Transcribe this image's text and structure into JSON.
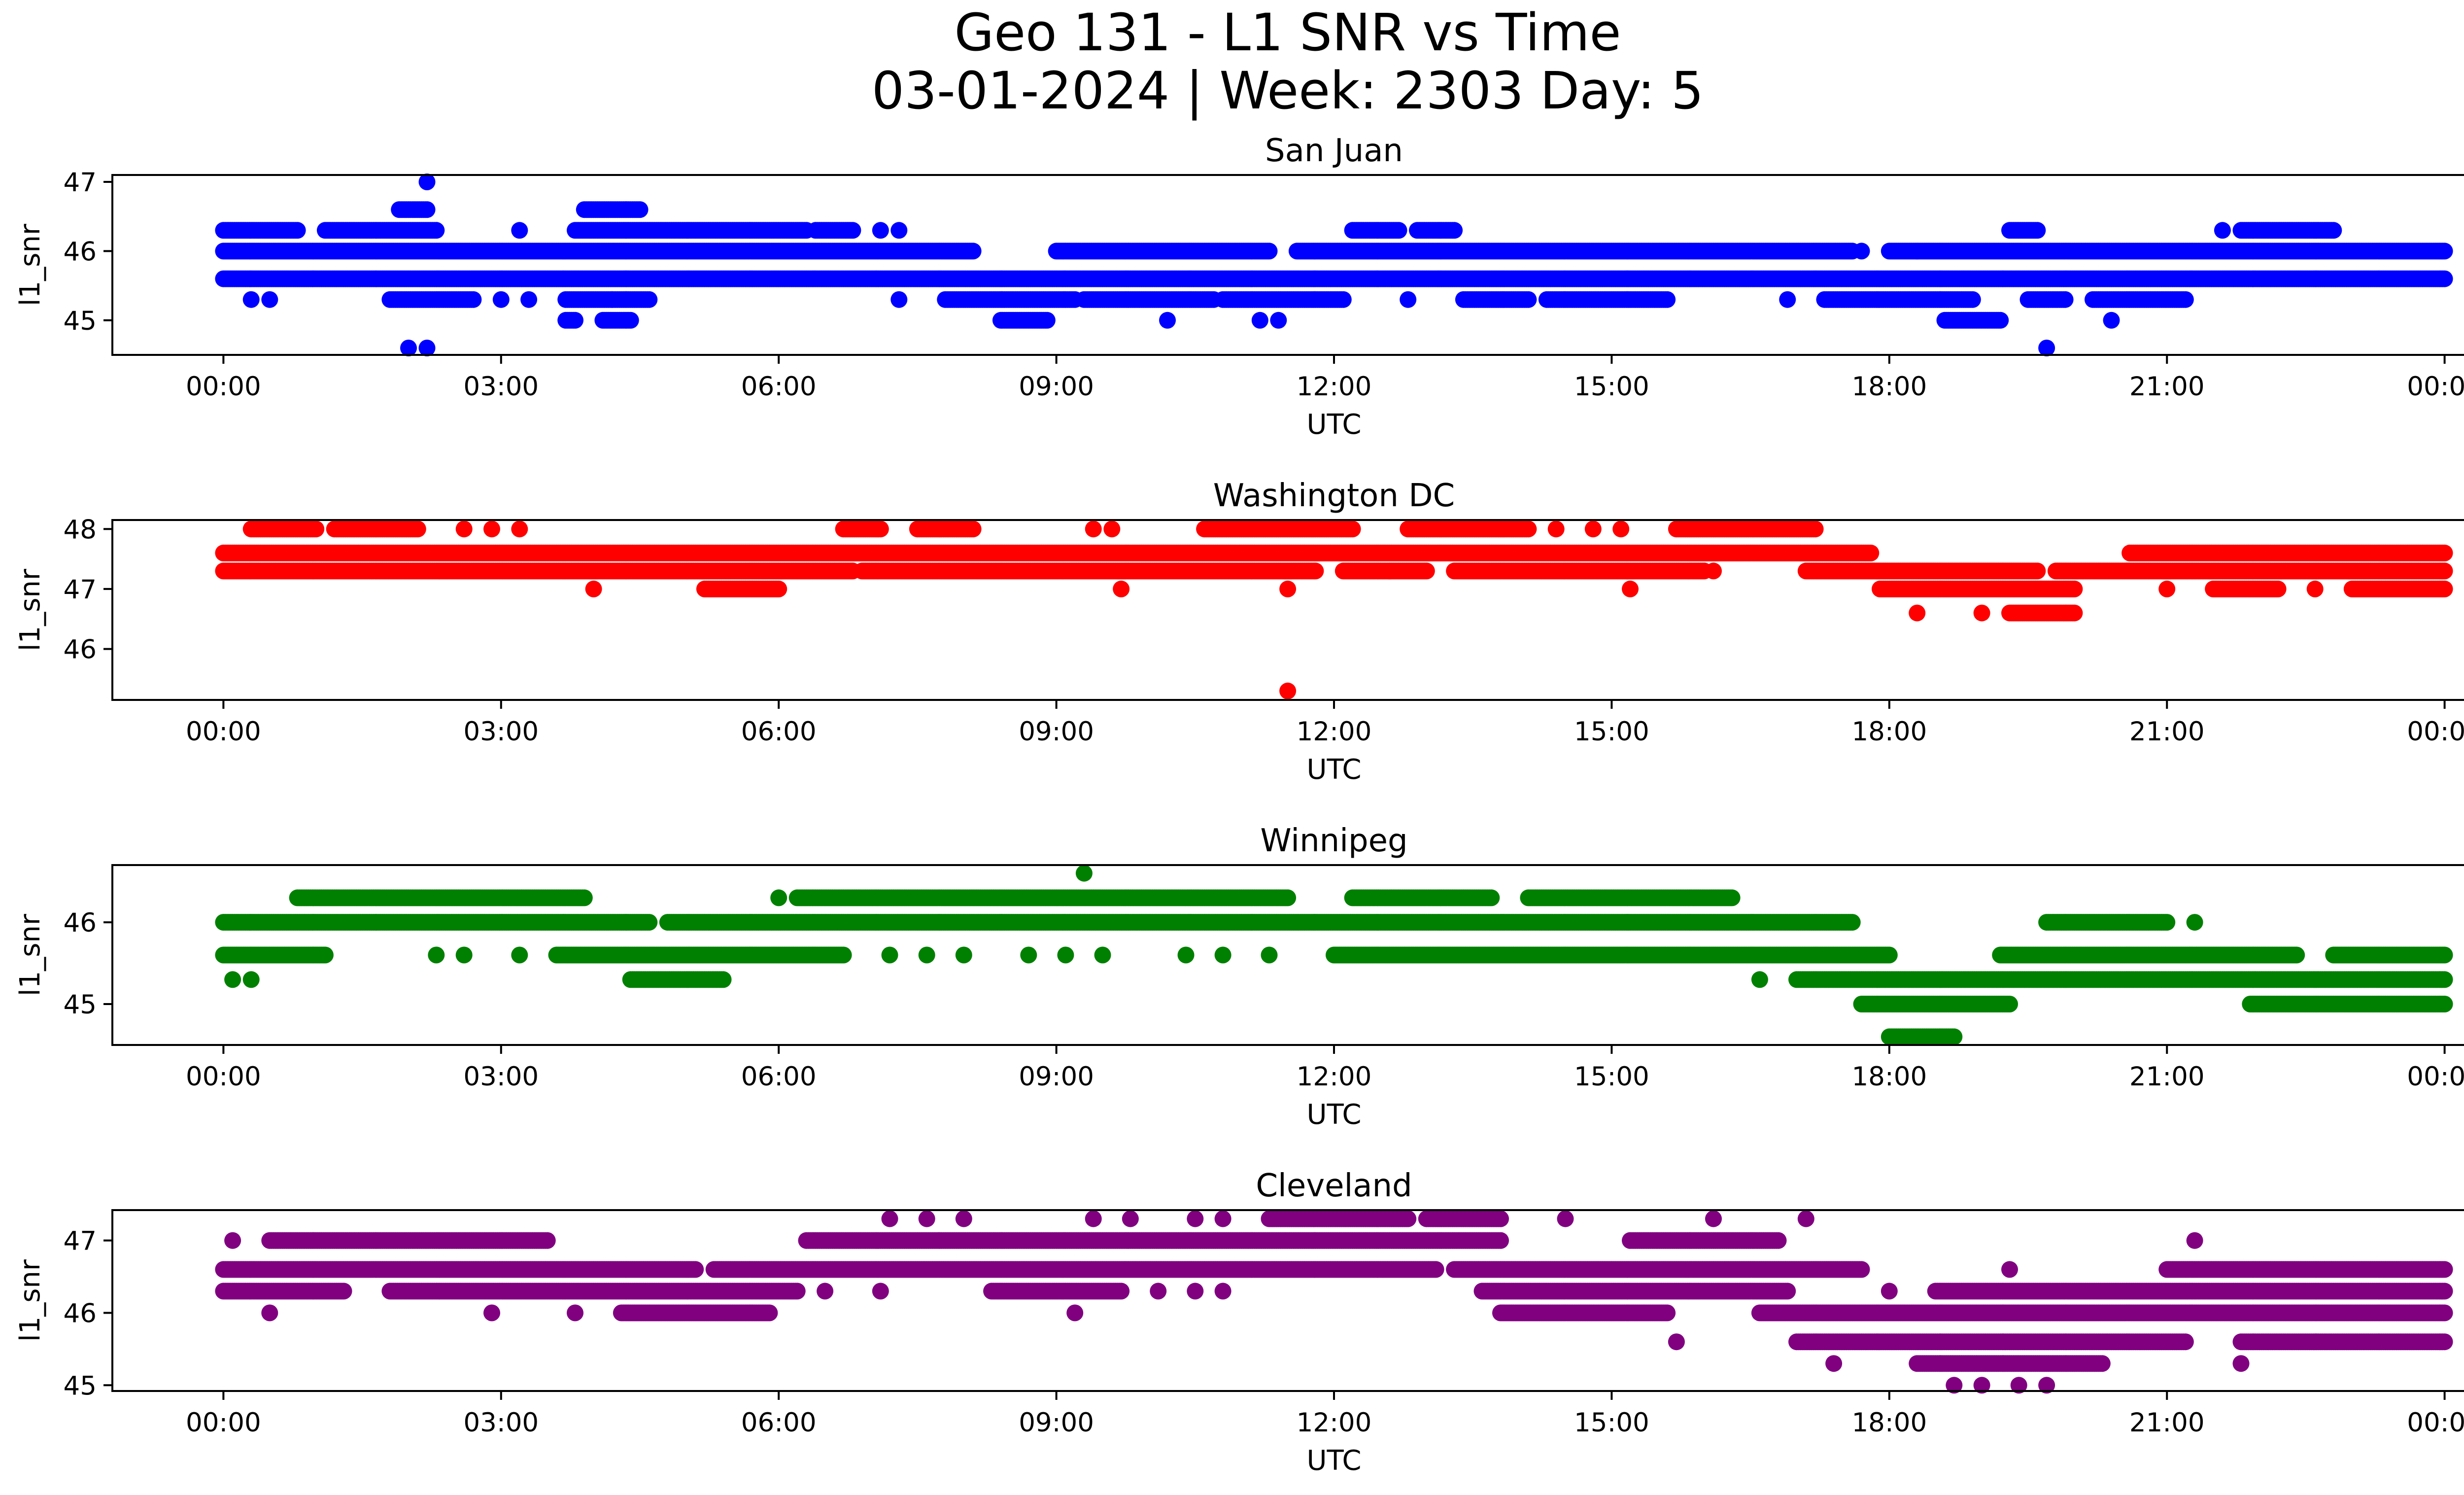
{
  "figure": {
    "title_line1": "Geo 131 - L1 SNR vs Time",
    "title_line2": "03-01-2024 | Week: 2303 Day: 5"
  },
  "chart_data": [
    {
      "type": "scatter",
      "title": "San Juan",
      "xlabel": "UTC",
      "ylabel": "l1_snr",
      "color": "#0000ff",
      "xticks": [
        "00:00",
        "03:00",
        "06:00",
        "09:00",
        "12:00",
        "15:00",
        "18:00",
        "21:00",
        "00:00"
      ],
      "yticks": [
        45,
        46,
        47
      ],
      "xlim_hours": [
        -1.2,
        25.2
      ],
      "ylim": [
        44.5,
        47.1
      ],
      "bands": [
        {
          "y": 45.6,
          "segments": [
            [
              0,
              24
            ]
          ]
        },
        {
          "y": 46.0,
          "segments": [
            [
              0,
              8.1
            ],
            [
              9.0,
              11.3
            ],
            [
              11.6,
              17.6
            ],
            [
              18.0,
              24
            ]
          ]
        },
        {
          "y": 45.3,
          "segments": [
            [
              1.8,
              2.7
            ],
            [
              3.7,
              4.6
            ],
            [
              7.8,
              9.2
            ],
            [
              9.3,
              10.7
            ],
            [
              10.8,
              12.1
            ],
            [
              13.4,
              14.1
            ],
            [
              14.3,
              15.6
            ],
            [
              17.3,
              18.9
            ],
            [
              19.5,
              19.9
            ],
            [
              20.2,
              21.2
            ]
          ]
        },
        {
          "y": 46.3,
          "segments": [
            [
              0,
              0.8
            ],
            [
              1.1,
              2.3
            ],
            [
              3.8,
              6.3
            ],
            [
              6.4,
              6.8
            ],
            [
              12.2,
              12.7
            ],
            [
              12.9,
              13.3
            ],
            [
              19.3,
              19.6
            ],
            [
              21.8,
              22.8
            ]
          ]
        },
        {
          "y": 46.6,
          "segments": [
            [
              1.9,
              2.2
            ],
            [
              3.9,
              4.5
            ]
          ]
        },
        {
          "y": 45.0,
          "segments": [
            [
              3.7,
              3.8
            ],
            [
              4.1,
              4.4
            ],
            [
              8.4,
              8.9
            ],
            [
              18.6,
              19.2
            ]
          ]
        }
      ],
      "points": [
        [
          0.3,
          45.3
        ],
        [
          0.5,
          45.3
        ],
        [
          2.2,
          47.0
        ],
        [
          2.0,
          44.6
        ],
        [
          2.2,
          44.6
        ],
        [
          10.2,
          45.0
        ],
        [
          11.2,
          45.0
        ],
        [
          11.4,
          45.0
        ],
        [
          7.3,
          45.3
        ],
        [
          12.8,
          45.3
        ],
        [
          16.9,
          45.3
        ],
        [
          20.4,
          45.0
        ],
        [
          19.7,
          44.6
        ],
        [
          18.3,
          46.0
        ],
        [
          17.7,
          46.0
        ],
        [
          3.2,
          46.3
        ],
        [
          7.1,
          46.3
        ],
        [
          7.3,
          46.3
        ],
        [
          3.3,
          45.3
        ],
        [
          3.0,
          45.3
        ],
        [
          4.2,
          45.3
        ],
        [
          21.6,
          46.3
        ]
      ]
    },
    {
      "type": "scatter",
      "title": "Washington DC",
      "xlabel": "UTC",
      "ylabel": "l1_snr",
      "color": "#ff0000",
      "xticks": [
        "00:00",
        "03:00",
        "06:00",
        "09:00",
        "12:00",
        "15:00",
        "18:00",
        "21:00",
        "00:00"
      ],
      "yticks": [
        46,
        47,
        48
      ],
      "xlim_hours": [
        -1.2,
        25.2
      ],
      "ylim": [
        45.15,
        48.15
      ],
      "bands": [
        {
          "y": 47.6,
          "segments": [
            [
              0,
              17.8
            ],
            [
              20.6,
              24
            ]
          ]
        },
        {
          "y": 47.3,
          "segments": [
            [
              0,
              6.8
            ],
            [
              6.9,
              11.8
            ],
            [
              12.1,
              13.0
            ],
            [
              13.3,
              16.0
            ],
            [
              17.1,
              19.6
            ],
            [
              19.8,
              24
            ]
          ]
        },
        {
          "y": 47.0,
          "segments": [
            [
              5.2,
              6.0
            ],
            [
              17.9,
              20.0
            ],
            [
              21.5,
              22.2
            ],
            [
              23.0,
              24
            ]
          ]
        },
        {
          "y": 48.0,
          "segments": [
            [
              0.3,
              1.0
            ],
            [
              1.2,
              2.1
            ],
            [
              6.7,
              7.1
            ],
            [
              7.5,
              8.1
            ],
            [
              10.6,
              12.2
            ],
            [
              12.8,
              14.1
            ],
            [
              15.7,
              17.2
            ]
          ]
        },
        {
          "y": 46.6,
          "segments": [
            [
              19.3,
              20.0
            ]
          ]
        }
      ],
      "points": [
        [
          2.6,
          48.0
        ],
        [
          2.9,
          48.0
        ],
        [
          3.2,
          48.0
        ],
        [
          9.4,
          48.0
        ],
        [
          9.6,
          48.0
        ],
        [
          14.4,
          48.0
        ],
        [
          14.8,
          48.0
        ],
        [
          15.1,
          48.0
        ],
        [
          4.0,
          47.0
        ],
        [
          9.7,
          47.0
        ],
        [
          11.5,
          47.0
        ],
        [
          15.2,
          47.0
        ],
        [
          18.3,
          46.6
        ],
        [
          19.0,
          46.6
        ],
        [
          11.5,
          45.3
        ],
        [
          16.1,
          47.3
        ],
        [
          12.6,
          47.3
        ],
        [
          21.0,
          47.0
        ],
        [
          22.6,
          47.0
        ]
      ]
    },
    {
      "type": "scatter",
      "title": "Winnipeg",
      "xlabel": "UTC",
      "ylabel": "l1_snr",
      "color": "#008000",
      "xticks": [
        "00:00",
        "03:00",
        "06:00",
        "09:00",
        "12:00",
        "15:00",
        "18:00",
        "21:00",
        "00:00"
      ],
      "yticks": [
        45,
        46
      ],
      "xlim_hours": [
        -1.2,
        25.2
      ],
      "ylim": [
        44.5,
        46.7
      ],
      "bands": [
        {
          "y": 46.0,
          "segments": [
            [
              0,
              4.6
            ],
            [
              4.8,
              17.6
            ],
            [
              19.7,
              21.0
            ]
          ]
        },
        {
          "y": 45.6,
          "segments": [
            [
              0,
              1.1
            ],
            [
              3.6,
              6.7
            ],
            [
              12.0,
              18.0
            ],
            [
              19.2,
              22.4
            ],
            [
              22.8,
              24
            ]
          ]
        },
        {
          "y": 46.3,
          "segments": [
            [
              0.8,
              3.9
            ],
            [
              6.2,
              11.5
            ],
            [
              12.2,
              13.7
            ],
            [
              14.1,
              16.3
            ]
          ]
        },
        {
          "y": 45.3,
          "segments": [
            [
              4.4,
              5.4
            ],
            [
              17.0,
              24
            ]
          ]
        },
        {
          "y": 45.0,
          "segments": [
            [
              17.7,
              19.3
            ],
            [
              21.9,
              24
            ]
          ]
        },
        {
          "y": 44.6,
          "segments": [
            [
              18.0,
              18.7
            ]
          ]
        }
      ],
      "points": [
        [
          9.3,
          46.6
        ],
        [
          0.1,
          45.3
        ],
        [
          0.3,
          45.3
        ],
        [
          16.6,
          45.3
        ],
        [
          2.3,
          45.6
        ],
        [
          2.6,
          45.6
        ],
        [
          3.2,
          45.6
        ],
        [
          7.2,
          45.6
        ],
        [
          7.6,
          45.6
        ],
        [
          8.0,
          45.6
        ],
        [
          8.7,
          45.6
        ],
        [
          9.1,
          45.6
        ],
        [
          9.5,
          45.6
        ],
        [
          10.4,
          45.6
        ],
        [
          10.8,
          45.6
        ],
        [
          11.3,
          45.6
        ],
        [
          6.0,
          46.3
        ],
        [
          21.3,
          46.0
        ]
      ]
    },
    {
      "type": "scatter",
      "title": "Cleveland",
      "xlabel": "UTC",
      "ylabel": "l1_snr",
      "color": "#800080",
      "xticks": [
        "00:00",
        "03:00",
        "06:00",
        "09:00",
        "12:00",
        "15:00",
        "18:00",
        "21:00",
        "00:00"
      ],
      "yticks": [
        45,
        46,
        47
      ],
      "xlim_hours": [
        -1.2,
        25.2
      ],
      "ylim": [
        44.92,
        47.42
      ],
      "bands": [
        {
          "y": 46.6,
          "segments": [
            [
              0,
              5.1
            ],
            [
              5.3,
              13.1
            ],
            [
              13.3,
              17.7
            ],
            [
              21.0,
              24
            ]
          ]
        },
        {
          "y": 46.3,
          "segments": [
            [
              0,
              1.3
            ],
            [
              1.8,
              6.2
            ],
            [
              8.3,
              9.7
            ],
            [
              13.6,
              16.9
            ],
            [
              18.5,
              24
            ]
          ]
        },
        {
          "y": 47.0,
          "segments": [
            [
              0.5,
              3.5
            ],
            [
              6.3,
              13.8
            ],
            [
              15.2,
              16.8
            ]
          ]
        },
        {
          "y": 46.0,
          "segments": [
            [
              4.3,
              5.9
            ],
            [
              13.8,
              15.6
            ],
            [
              16.6,
              24
            ]
          ]
        },
        {
          "y": 45.6,
          "segments": [
            [
              17.0,
              21.2
            ],
            [
              21.8,
              24
            ]
          ]
        },
        {
          "y": 45.3,
          "segments": [
            [
              18.3,
              20.3
            ]
          ]
        },
        {
          "y": 47.3,
          "segments": [
            [
              11.3,
              12.8
            ],
            [
              13.0,
              13.8
            ]
          ]
        }
      ],
      "points": [
        [
          0.1,
          47.0
        ],
        [
          0.5,
          46.0
        ],
        [
          2.9,
          46.0
        ],
        [
          3.8,
          46.0
        ],
        [
          9.2,
          46.0
        ],
        [
          15.7,
          45.6
        ],
        [
          17.4,
          45.3
        ],
        [
          18.7,
          45.0
        ],
        [
          19.0,
          45.0
        ],
        [
          19.4,
          45.0
        ],
        [
          19.7,
          45.0
        ],
        [
          21.8,
          45.3
        ],
        [
          21.3,
          47.0
        ],
        [
          16.1,
          47.3
        ],
        [
          17.1,
          47.3
        ],
        [
          7.2,
          47.3
        ],
        [
          7.6,
          47.3
        ],
        [
          8.0,
          47.3
        ],
        [
          9.4,
          47.3
        ],
        [
          9.8,
          47.3
        ],
        [
          10.5,
          47.3
        ],
        [
          10.8,
          47.3
        ],
        [
          14.5,
          47.3
        ],
        [
          18.0,
          46.3
        ],
        [
          19.3,
          46.6
        ],
        [
          10.1,
          46.3
        ],
        [
          10.5,
          46.3
        ],
        [
          10.8,
          46.3
        ],
        [
          6.5,
          46.3
        ],
        [
          7.1,
          46.3
        ]
      ]
    }
  ]
}
